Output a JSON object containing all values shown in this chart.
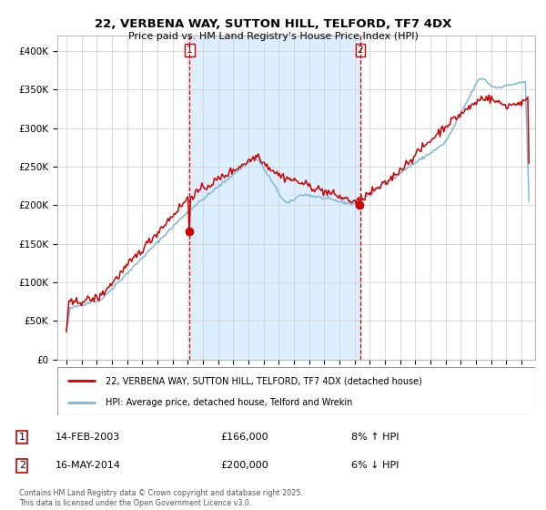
{
  "title": "22, VERBENA WAY, SUTTON HILL, TELFORD, TF7 4DX",
  "subtitle": "Price paid vs. HM Land Registry's House Price Index (HPI)",
  "legend_line1": "22, VERBENA WAY, SUTTON HILL, TELFORD, TF7 4DX (detached house)",
  "legend_line2": "HPI: Average price, detached house, Telford and Wrekin",
  "annotation1_label": "1",
  "annotation1_date": "14-FEB-2003",
  "annotation1_price": "£166,000",
  "annotation1_pct": "8% ↑ HPI",
  "annotation2_label": "2",
  "annotation2_date": "16-MAY-2014",
  "annotation2_price": "£200,000",
  "annotation2_pct": "6% ↓ HPI",
  "footnote": "Contains HM Land Registry data © Crown copyright and database right 2025.\nThis data is licensed under the Open Government Licence v3.0.",
  "purchase1_year": 2003.12,
  "purchase1_value": 166000,
  "purchase2_year": 2014.37,
  "purchase2_value": 200000,
  "ylim": [
    0,
    420000
  ],
  "yticks": [
    0,
    50000,
    100000,
    150000,
    200000,
    250000,
    300000,
    350000,
    400000
  ],
  "color_red": "#cc0000",
  "color_blue": "#7db8d8",
  "color_shading": "#ddeeff"
}
